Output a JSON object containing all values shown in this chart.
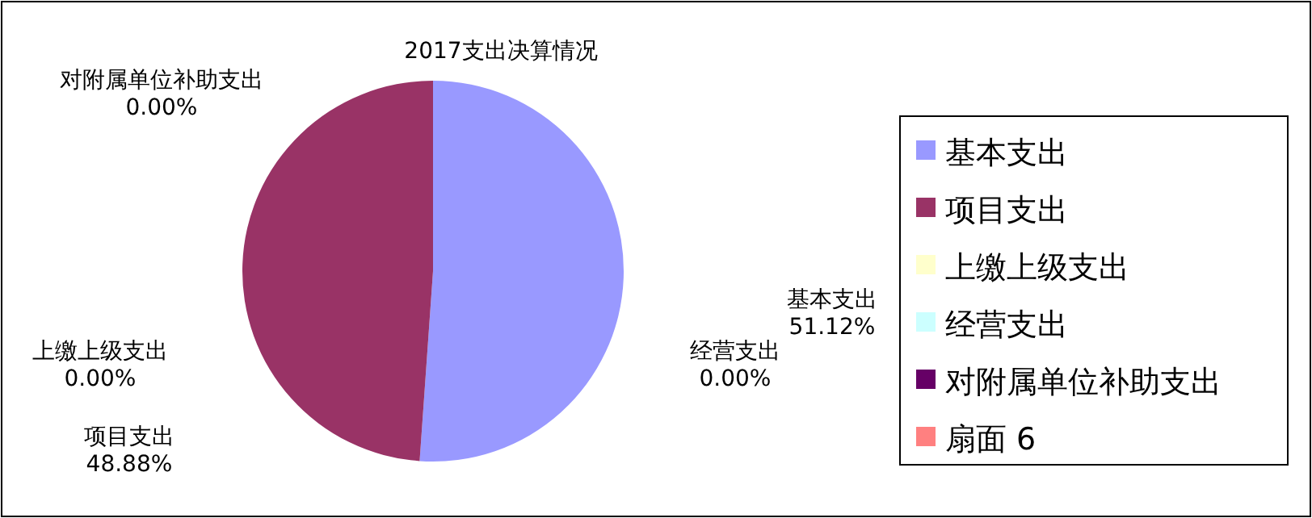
{
  "chart_data": {
    "type": "pie",
    "title": "2017支出决算情况",
    "categories": [
      "基本支出",
      "项目支出",
      "上缴上级支出",
      "经营支出",
      "对附属单位补助支出",
      "扇面 6"
    ],
    "values": [
      51.12,
      48.88,
      0.0,
      0.0,
      0.0,
      null
    ],
    "colors": [
      "#9999ff",
      "#993366",
      "#ffffcc",
      "#ccffff",
      "#660066",
      "#ff8080"
    ],
    "value_labels": [
      "51.12%",
      "48.88%",
      "0.00%",
      "0.00%",
      "0.00%",
      null
    ],
    "data_labels": true,
    "legend": "right"
  }
}
